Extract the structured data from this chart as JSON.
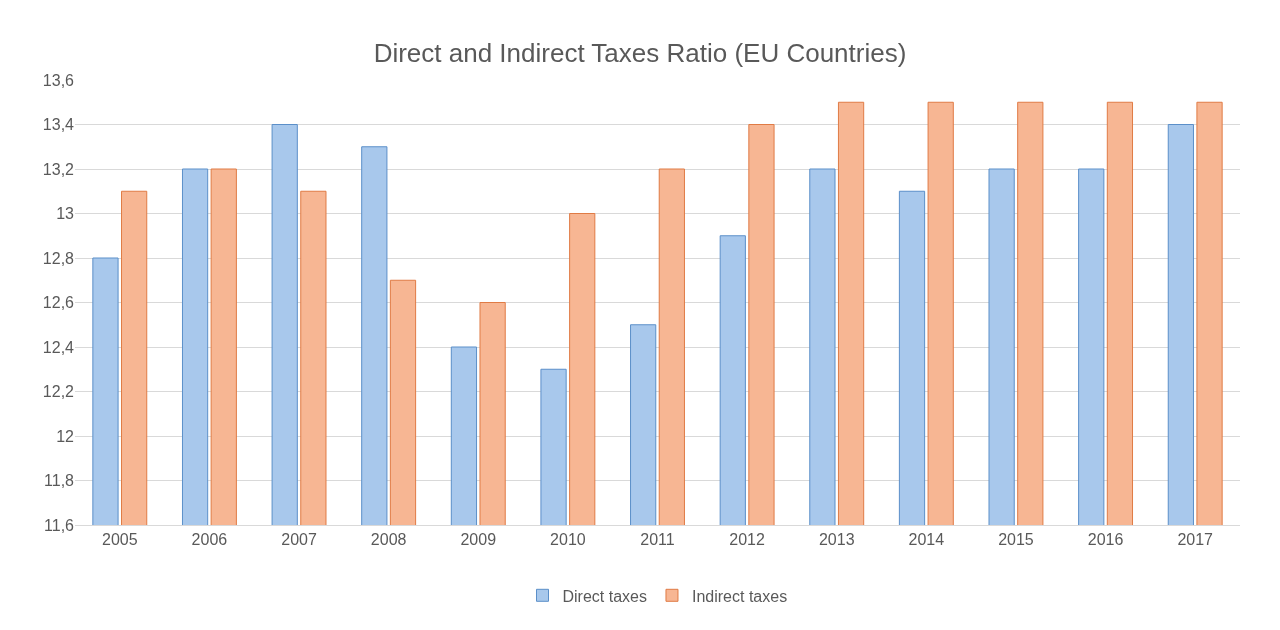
{
  "chart_data": {
    "type": "bar",
    "title": "Direct and Indirect Taxes Ratio (EU Countries)",
    "categories": [
      "2005",
      "2006",
      "2007",
      "2008",
      "2009",
      "2010",
      "2011",
      "2012",
      "2013",
      "2014",
      "2015",
      "2016",
      "2017"
    ],
    "series": [
      {
        "name": "Direct taxes",
        "color": "#a8c8ec",
        "values": [
          12.8,
          13.2,
          13.4,
          13.3,
          12.4,
          12.3,
          12.5,
          12.9,
          13.2,
          13.1,
          13.2,
          13.2,
          13.4
        ]
      },
      {
        "name": "Indirect taxes",
        "color": "#f7b693",
        "values": [
          13.1,
          13.2,
          13.1,
          12.7,
          12.6,
          13.0,
          13.2,
          13.4,
          13.5,
          13.5,
          13.5,
          13.5,
          13.5
        ]
      }
    ],
    "ylim": [
      11.6,
      13.6
    ],
    "yticks": [
      {
        "value": 11.6,
        "label": "11,6"
      },
      {
        "value": 11.8,
        "label": "11,8"
      },
      12,
      {
        "value": 12.2,
        "label": "12,2"
      },
      {
        "value": 12.4,
        "label": "12,4"
      },
      {
        "value": 12.6,
        "label": "12,6"
      },
      {
        "value": 12.8,
        "label": "12,8"
      },
      13,
      {
        "value": 13.2,
        "label": "13,2"
      },
      {
        "value": 13.4,
        "label": "13,4"
      },
      {
        "value": 13.6,
        "label": "13,6"
      }
    ],
    "grid": "y",
    "legend": "bottom"
  }
}
